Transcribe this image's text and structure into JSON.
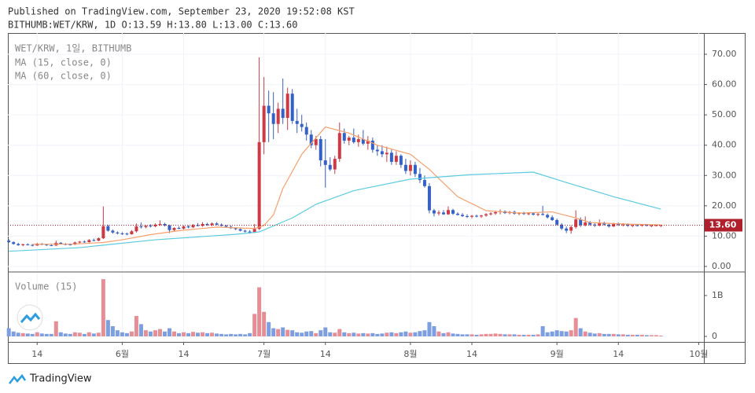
{
  "header": {
    "published": "Published on TradingView.com, September 23, 2020 19:52:08 KST",
    "symbol_line": "BITHUMB:WET/KRW, 1D O:13.59 H:13.80 L:13.00 C:13.60"
  },
  "footer": {
    "brand": "TradingView"
  },
  "chart_data": [
    {
      "type": "candlestick",
      "title": "WET/KRW, 1일, BITHUMB",
      "up_color": "#cc3b45",
      "down_color": "#3560c4",
      "xlim": [
        -0.2,
        147.1
      ],
      "ylim": [
        -1.56,
        77.0
      ],
      "xticks": [
        {
          "value": 6,
          "label": "14"
        },
        {
          "value": 24,
          "label": "6월"
        },
        {
          "value": 37,
          "label": "14"
        },
        {
          "value": 54,
          "label": "7월"
        },
        {
          "value": 67,
          "label": "14"
        },
        {
          "value": 85,
          "label": "8월"
        },
        {
          "value": 98,
          "label": "14"
        },
        {
          "value": 116,
          "label": "9월"
        },
        {
          "value": 129,
          "label": "14"
        },
        {
          "value": 146,
          "label": "10월"
        }
      ],
      "yticks": [
        {
          "value": 0,
          "label": "0.00"
        },
        {
          "value": 10,
          "label": "10.00"
        },
        {
          "value": 20,
          "label": "20.00"
        },
        {
          "value": 30,
          "label": "30.00"
        },
        {
          "value": 40,
          "label": "40.00"
        },
        {
          "value": 50,
          "label": "50.00"
        },
        {
          "value": 60,
          "label": "60.00"
        },
        {
          "value": 70,
          "label": "70.00"
        }
      ],
      "grid": true,
      "last_price": {
        "value": 13.6,
        "label": "13.60",
        "color": "#b0202c"
      },
      "ohlc": [
        [
          8.5,
          9,
          7.8,
          8.0
        ],
        [
          8.0,
          8.3,
          7.2,
          7.4
        ],
        [
          7.4,
          7.8,
          6.8,
          7.0
        ],
        [
          7.0,
          7.5,
          6.7,
          7.3
        ],
        [
          7.3,
          7.6,
          6.9,
          7.1
        ],
        [
          7.1,
          7.4,
          6.6,
          6.9
        ],
        [
          6.9,
          7.8,
          6.8,
          7.5
        ],
        [
          7.5,
          7.7,
          7.0,
          7.2
        ],
        [
          7.2,
          7.4,
          6.8,
          7.0
        ],
        [
          7.0,
          7.3,
          6.7,
          6.9
        ],
        [
          6.9,
          8.5,
          6.8,
          7.8
        ],
        [
          7.8,
          8.0,
          7.2,
          7.4
        ],
        [
          7.4,
          7.7,
          7.0,
          7.3
        ],
        [
          7.3,
          7.6,
          6.9,
          7.2
        ],
        [
          7.2,
          8.2,
          7.1,
          7.9
        ],
        [
          7.9,
          8.4,
          7.5,
          8.2
        ],
        [
          8.2,
          8.6,
          7.8,
          8.0
        ],
        [
          8.0,
          9.0,
          7.9,
          8.7
        ],
        [
          8.7,
          9.2,
          8.3,
          8.5
        ],
        [
          8.5,
          9.6,
          8.3,
          9.3
        ],
        [
          9.3,
          19.8,
          9.0,
          13.3
        ],
        [
          13.3,
          13.8,
          11.5,
          11.8
        ],
        [
          11.8,
          12.2,
          10.8,
          11.2
        ],
        [
          11.2,
          11.6,
          10.6,
          10.9
        ],
        [
          10.9,
          11.3,
          10.4,
          10.8
        ],
        [
          10.8,
          11.2,
          10.3,
          10.6
        ],
        [
          10.6,
          12.0,
          10.5,
          11.6
        ],
        [
          11.6,
          14.2,
          11.2,
          13.2
        ],
        [
          13.2,
          14.5,
          12.5,
          13.0
        ],
        [
          13.0,
          13.6,
          12.6,
          13.4
        ],
        [
          13.4,
          13.9,
          12.9,
          13.2
        ],
        [
          13.2,
          14.2,
          13.0,
          13.8
        ],
        [
          13.8,
          15.2,
          13.4,
          14.0
        ],
        [
          14.0,
          14.4,
          13.2,
          13.5
        ],
        [
          13.5,
          13.8,
          11.0,
          12.0
        ],
        [
          12.0,
          12.9,
          11.5,
          12.7
        ],
        [
          12.7,
          13.2,
          12.3,
          12.5
        ],
        [
          12.5,
          13.5,
          12.2,
          13.2
        ],
        [
          13.2,
          13.6,
          12.6,
          12.9
        ],
        [
          12.9,
          14.0,
          12.7,
          13.6
        ],
        [
          13.6,
          14.3,
          13.2,
          13.4
        ],
        [
          13.4,
          14.6,
          13.1,
          14.0
        ],
        [
          14.0,
          14.4,
          13.4,
          13.7
        ],
        [
          13.7,
          14.5,
          13.3,
          14.2
        ],
        [
          14.2,
          14.6,
          13.6,
          13.8
        ],
        [
          13.8,
          14.2,
          13.2,
          13.4
        ],
        [
          13.4,
          13.7,
          12.9,
          13.1
        ],
        [
          13.1,
          13.5,
          12.4,
          12.6
        ],
        [
          12.6,
          12.9,
          12.0,
          12.3
        ],
        [
          12.3,
          12.6,
          11.6,
          11.8
        ],
        [
          11.8,
          12.1,
          11.2,
          11.5
        ],
        [
          11.5,
          12.0,
          10.8,
          11.2
        ],
        [
          11.2,
          14.0,
          11.0,
          12.4
        ],
        [
          12.4,
          69.0,
          12.0,
          41.0
        ],
        [
          41.0,
          62.5,
          37.0,
          53.0
        ],
        [
          53.0,
          58.0,
          41.0,
          50.5
        ],
        [
          50.5,
          57.5,
          42.0,
          47.0
        ],
        [
          47.0,
          54.0,
          44.0,
          52.0
        ],
        [
          52.0,
          62.0,
          47.0,
          49.0
        ],
        [
          49.0,
          59.0,
          45.0,
          57.0
        ],
        [
          57.0,
          58.5,
          47.0,
          48.0
        ],
        [
          48.0,
          52.0,
          44.0,
          47.0
        ],
        [
          47.0,
          50.0,
          44.5,
          46.0
        ],
        [
          46.0,
          47.5,
          41.5,
          43.5
        ],
        [
          43.5,
          45.0,
          39.0,
          40.0
        ],
        [
          40.0,
          43.0,
          38.5,
          42.0
        ],
        [
          42.0,
          43.0,
          33.0,
          35.0
        ],
        [
          35.0,
          42.0,
          26.0,
          33.5
        ],
        [
          33.5,
          36.0,
          31.5,
          32.0
        ],
        [
          32.0,
          36.5,
          30.5,
          35.5
        ],
        [
          35.5,
          47.5,
          34.5,
          44.0
        ],
        [
          44.0,
          45.5,
          40.5,
          41.5
        ],
        [
          41.5,
          43.0,
          40.0,
          42.5
        ],
        [
          42.5,
          45.5,
          40.5,
          41.0
        ],
        [
          41.0,
          43.5,
          39.5,
          42.0
        ],
        [
          42.0,
          45.0,
          40.0,
          40.5
        ],
        [
          40.5,
          43.0,
          38.5,
          41.5
        ],
        [
          41.5,
          42.5,
          37.5,
          38.5
        ],
        [
          38.5,
          40.0,
          36.5,
          38.0
        ],
        [
          38.0,
          40.0,
          36.0,
          37.0
        ],
        [
          37.0,
          39.5,
          34.5,
          37.5
        ],
        [
          37.5,
          38.5,
          33.5,
          34.5
        ],
        [
          34.5,
          38.0,
          33.5,
          36.5
        ],
        [
          36.5,
          37.0,
          32.5,
          33.5
        ],
        [
          33.5,
          35.5,
          30.5,
          31.5
        ],
        [
          31.5,
          35.0,
          30.0,
          33.5
        ],
        [
          33.5,
          34.5,
          29.5,
          30.5
        ],
        [
          30.5,
          32.5,
          27.5,
          28.5
        ],
        [
          28.5,
          30.0,
          26.0,
          26.5
        ],
        [
          26.5,
          27.5,
          17.5,
          18.5
        ],
        [
          18.5,
          19.0,
          16.5,
          17.5
        ],
        [
          17.5,
          18.5,
          16.8,
          17.8
        ],
        [
          17.8,
          18.6,
          17.0,
          17.2
        ],
        [
          17.2,
          19.8,
          17.0,
          18.6
        ],
        [
          18.6,
          19.0,
          17.0,
          17.4
        ],
        [
          17.4,
          17.9,
          16.8,
          17.0
        ],
        [
          17.0,
          17.6,
          16.3,
          16.6
        ],
        [
          16.6,
          17.2,
          16.0,
          16.4
        ],
        [
          16.4,
          17.0,
          15.9,
          16.7
        ],
        [
          16.7,
          17.1,
          16.2,
          16.5
        ],
        [
          16.5,
          17.0,
          16.0,
          16.8
        ],
        [
          16.8,
          17.6,
          16.4,
          17.2
        ],
        [
          17.2,
          17.9,
          16.8,
          17.5
        ],
        [
          17.5,
          18.4,
          17.0,
          17.9
        ],
        [
          17.9,
          18.8,
          17.2,
          18.2
        ],
        [
          18.2,
          18.5,
          17.3,
          17.6
        ],
        [
          17.6,
          18.3,
          17.2,
          18.0
        ],
        [
          18.0,
          18.4,
          17.1,
          17.4
        ],
        [
          17.4,
          17.9,
          16.9,
          17.6
        ],
        [
          17.6,
          18.0,
          17.0,
          17.3
        ],
        [
          17.3,
          17.8,
          16.9,
          17.5
        ],
        [
          17.5,
          17.9,
          16.8,
          17.1
        ],
        [
          17.1,
          17.6,
          16.6,
          17.3
        ],
        [
          17.3,
          20.0,
          16.8,
          17.0
        ],
        [
          17.0,
          17.5,
          15.8,
          16.2
        ],
        [
          16.2,
          16.8,
          15.0,
          15.3
        ],
        [
          15.3,
          15.8,
          13.5,
          13.8
        ],
        [
          13.8,
          14.3,
          12.0,
          12.5
        ],
        [
          12.5,
          13.2,
          11.0,
          11.8
        ],
        [
          11.8,
          13.5,
          10.8,
          13.0
        ],
        [
          13.0,
          18.5,
          12.5,
          15.5
        ],
        [
          15.5,
          16.2,
          13.0,
          13.6
        ],
        [
          13.6,
          16.5,
          13.2,
          14.5
        ],
        [
          14.5,
          15.0,
          13.4,
          13.8
        ],
        [
          13.8,
          14.3,
          13.0,
          13.5
        ],
        [
          13.5,
          15.5,
          13.2,
          14.4
        ],
        [
          14.4,
          14.8,
          13.5,
          13.8
        ],
        [
          13.8,
          14.2,
          12.8,
          13.2
        ],
        [
          13.2,
          14.4,
          13.0,
          14.0
        ],
        [
          14.0,
          14.5,
          13.4,
          13.7
        ],
        [
          13.7,
          14.3,
          13.2,
          13.9
        ],
        [
          13.9,
          14.2,
          13.1,
          13.4
        ],
        [
          13.4,
          13.9,
          13.0,
          13.6
        ],
        [
          13.6,
          14.0,
          13.2,
          13.5
        ],
        [
          13.5,
          13.9,
          13.1,
          13.7
        ],
        [
          13.7,
          14.0,
          13.2,
          13.4
        ],
        [
          13.4,
          13.8,
          13.0,
          13.5
        ],
        [
          13.5,
          13.9,
          13.2,
          13.59
        ],
        [
          13.59,
          13.8,
          13.0,
          13.6
        ]
      ],
      "series": [
        {
          "name": "MA (15, close, 0)",
          "color": "#f5a06a",
          "x": [
            5,
            14,
            20,
            24,
            30,
            36,
            44,
            52,
            54,
            56,
            58,
            62,
            67,
            72,
            78,
            85,
            89,
            95,
            101,
            108,
            115,
            120,
            123,
            130,
            138
          ],
          "values": [
            7.3,
            7.4,
            7.9,
            8.8,
            10.5,
            11.8,
            13.0,
            12.5,
            13.5,
            17,
            25.7,
            37,
            46,
            44,
            40,
            37,
            32,
            23,
            18.4,
            17.6,
            18,
            16,
            14.5,
            14.0,
            13.7
          ]
        },
        {
          "name": "MA (60, close, 0)",
          "color": "#5ccbe0",
          "x": [
            0,
            15,
            31,
            48,
            53,
            60,
            65,
            73,
            85,
            98,
            111,
            118,
            128,
            138
          ],
          "values": [
            5,
            6.2,
            8.8,
            10.6,
            11.4,
            16,
            20.5,
            25,
            28.8,
            30.3,
            31.1,
            27.7,
            23,
            18.9
          ]
        }
      ]
    },
    {
      "type": "bar",
      "title": "Volume (15)",
      "up_color": "#e58e95",
      "down_color": "#7d9fe0",
      "ylim": [
        -135000000.0,
        1557000000.0
      ],
      "yticks": [
        0,
        {
          "value": 1000000000.0,
          "label": "1B"
        }
      ],
      "values": [
        200000000.0,
        120000000.0,
        90000000.0,
        80000000.0,
        70000000.0,
        60000000.0,
        100000000.0,
        70000000.0,
        60000000.0,
        60000000.0,
        370000000.0,
        100000000.0,
        70000000.0,
        60000000.0,
        100000000.0,
        90000000.0,
        60000000.0,
        100000000.0,
        70000000.0,
        90000000.0,
        1400000000.0,
        400000000.0,
        250000000.0,
        150000000.0,
        100000000.0,
        80000000.0,
        120000000.0,
        500000000.0,
        300000000.0,
        150000000.0,
        120000000.0,
        150000000.0,
        180000000.0,
        120000000.0,
        200000000.0,
        120000000.0,
        80000000.0,
        100000000.0,
        80000000.0,
        110000000.0,
        90000000.0,
        100000000.0,
        80000000.0,
        90000000.0,
        70000000.0,
        60000000.0,
        50000000.0,
        60000000.0,
        50000000.0,
        60000000.0,
        50000000.0,
        80000000.0,
        550000000.0,
        1200000000.0,
        600000000.0,
        350000000.0,
        200000000.0,
        180000000.0,
        220000000.0,
        160000000.0,
        150000000.0,
        100000000.0,
        90000000.0,
        120000000.0,
        130000000.0,
        80000000.0,
        150000000.0,
        220000000.0,
        100000000.0,
        90000000.0,
        180000000.0,
        100000000.0,
        80000000.0,
        90000000.0,
        70000000.0,
        80000000.0,
        70000000.0,
        80000000.0,
        60000000.0,
        70000000.0,
        90000000.0,
        100000000.0,
        80000000.0,
        100000000.0,
        120000000.0,
        90000000.0,
        100000000.0,
        130000000.0,
        150000000.0,
        350000000.0,
        250000000.0,
        120000000.0,
        80000000.0,
        100000000.0,
        70000000.0,
        60000000.0,
        50000000.0,
        50000000.0,
        50000000.0,
        40000000.0,
        50000000.0,
        60000000.0,
        60000000.0,
        70000000.0,
        60000000.0,
        50000000.0,
        50000000.0,
        50000000.0,
        40000000.0,
        40000000.0,
        40000000.0,
        40000000.0,
        50000000.0,
        250000000.0,
        100000000.0,
        120000000.0,
        150000000.0,
        130000000.0,
        120000000.0,
        150000000.0,
        450000000.0,
        200000000.0,
        120000000.0,
        90000000.0,
        70000000.0,
        80000000.0,
        60000000.0,
        60000000.0,
        60000000.0,
        50000000.0,
        50000000.0,
        40000000.0,
        40000000.0,
        40000000.0,
        40000000.0,
        30000000.0,
        30000000.0,
        30000000.0,
        20000000.0
      ]
    }
  ]
}
